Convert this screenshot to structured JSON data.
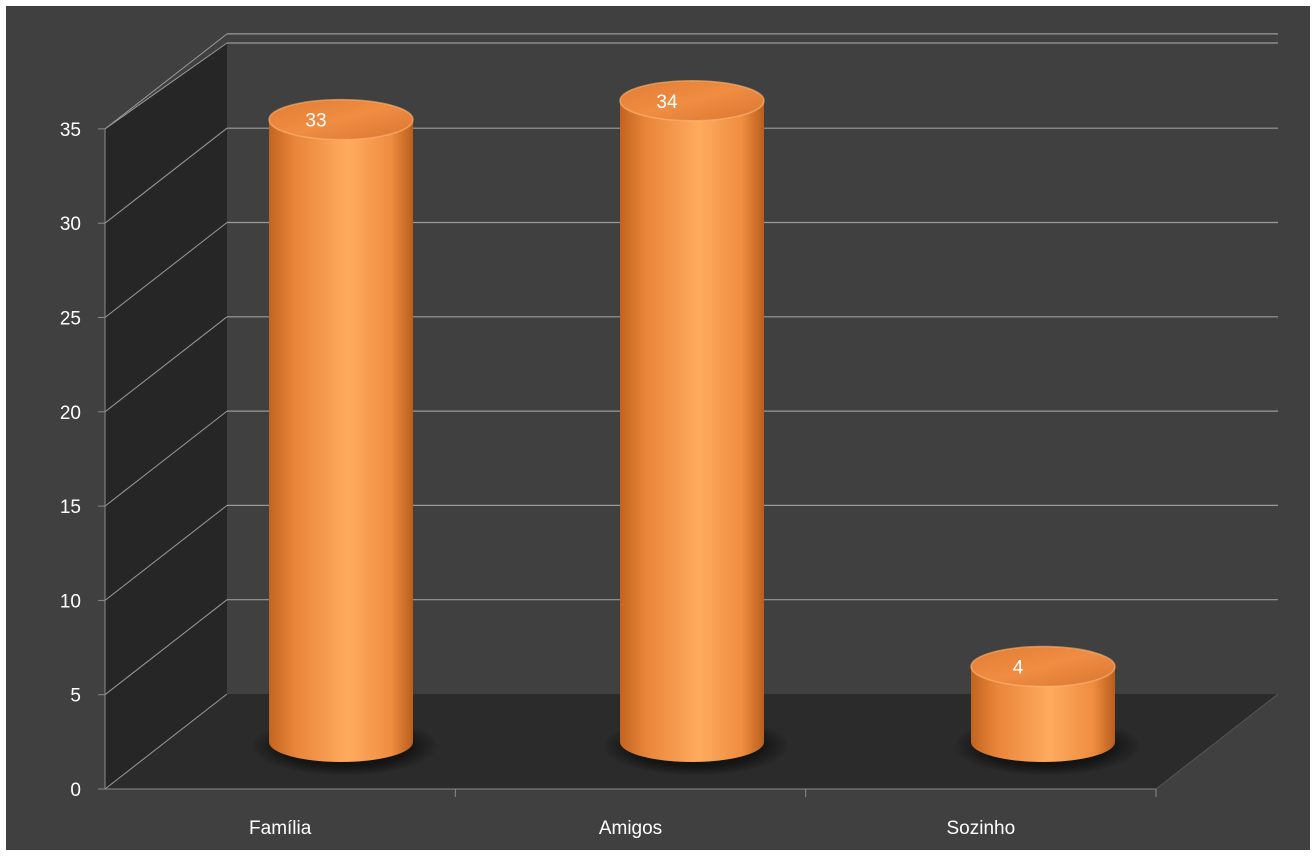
{
  "chart_data": {
    "type": "bar",
    "style": "3d-cylinder",
    "title": "",
    "xlabel": "",
    "ylabel": "",
    "categories": [
      "Família",
      "Amigos",
      "Sozinho"
    ],
    "series": [
      {
        "values": [
          33,
          34,
          4
        ]
      }
    ],
    "data_labels": [
      "33",
      "34",
      "4"
    ],
    "yticks": [
      "0",
      "5",
      "10",
      "15",
      "20",
      "25",
      "30",
      "35"
    ],
    "ylim": [
      0,
      35
    ],
    "grid": true,
    "legend": "none",
    "colors": {
      "background": "#404040",
      "outer_border": "#ffffff",
      "side_wall": "#262626",
      "floor": "#2b2b2b",
      "back_wall": "#3c3c3c",
      "gridline": "#9a9a9a",
      "bar_base": "#f79646",
      "bar_light": "#ffac5f",
      "bar_dark": "#b85e1d",
      "text": "#ffffff"
    }
  }
}
